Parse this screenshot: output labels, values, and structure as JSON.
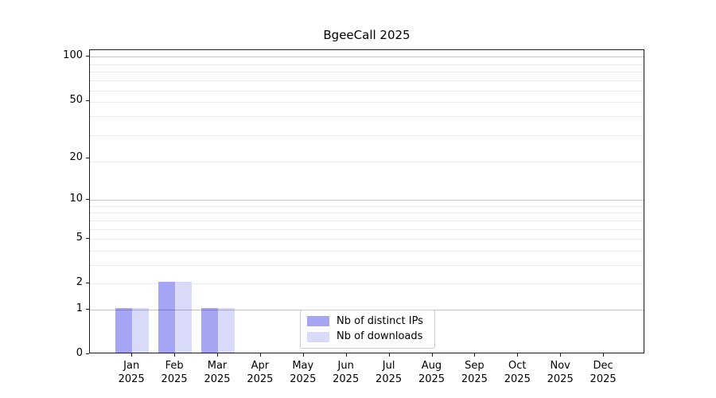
{
  "chart_data": {
    "type": "bar",
    "title": "BgeeCall 2025",
    "categories": [
      "Jan 2025",
      "Feb 2025",
      "Mar 2025",
      "Apr 2025",
      "May 2025",
      "Jun 2025",
      "Jul 2025",
      "Aug 2025",
      "Sep 2025",
      "Oct 2025",
      "Nov 2025",
      "Dec 2025"
    ],
    "series": [
      {
        "name": "Nb of distinct IPs",
        "color": "#a5a5f3",
        "key": "distinct-ips",
        "values": [
          1,
          2,
          1,
          0,
          0,
          0,
          0,
          0,
          0,
          0,
          0,
          0
        ]
      },
      {
        "name": "Nb of downloads",
        "color": "#d9d9fa",
        "key": "downloads",
        "values": [
          1,
          2,
          1,
          0,
          0,
          0,
          0,
          0,
          0,
          0,
          0,
          0
        ]
      }
    ],
    "xlabel": "",
    "ylabel": "",
    "yscale": "log1p",
    "ylim": [
      0,
      110
    ],
    "yticks": [
      0,
      1,
      2,
      5,
      10,
      20,
      50,
      100
    ],
    "major_gridline_values": [
      1,
      10,
      100
    ],
    "minor_gridline_values": [
      2,
      3,
      4,
      5,
      6,
      7,
      8,
      9,
      19,
      29,
      39,
      49,
      59,
      69,
      79,
      89
    ],
    "grid": true,
    "legend_position": "lower center"
  },
  "colors": {
    "background": "#ffffff",
    "axis": "#1a1a1a",
    "text": "#000000",
    "grid_major": "rgba(0,0,0,0.24)",
    "grid_minor": "rgba(0,0,0,0.08)",
    "legend_border": "#cccccc",
    "series_distinct_ips": "#a5a5f3",
    "series_downloads": "#d9d9fa"
  }
}
